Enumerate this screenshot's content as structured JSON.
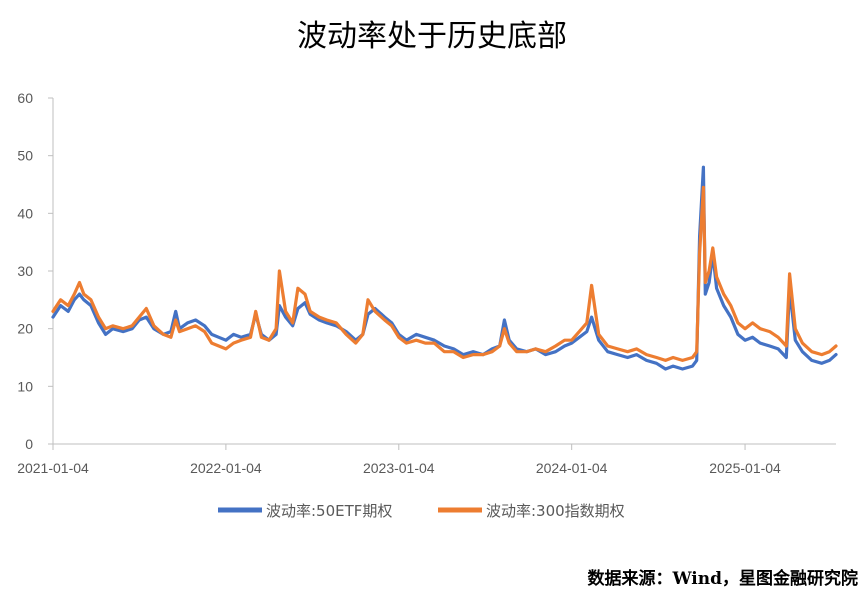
{
  "chart_data": {
    "type": "line",
    "title": "波动率处于历史底部",
    "source": "数据来源：Wind，星图金融研究院",
    "xlabel": "",
    "ylabel": "",
    "ylim": [
      0,
      60
    ],
    "yticks": [
      0,
      10,
      20,
      30,
      40,
      50,
      60
    ],
    "xlim": [
      "2021-01-04",
      "2025-07-15"
    ],
    "xticks": [
      "2021-01-04",
      "2022-01-04",
      "2023-01-04",
      "2024-01-04",
      "2025-01-04"
    ],
    "grid": false,
    "legend_position": "bottom",
    "series": [
      {
        "name": "波动率:50ETF期权",
        "color": "#4472C4",
        "points": [
          [
            "2021-01-04",
            22
          ],
          [
            "2021-01-20",
            24
          ],
          [
            "2021-02-05",
            23
          ],
          [
            "2021-02-18",
            25
          ],
          [
            "2021-03-01",
            26
          ],
          [
            "2021-03-10",
            25
          ],
          [
            "2021-03-25",
            24
          ],
          [
            "2021-04-10",
            21
          ],
          [
            "2021-04-25",
            19
          ],
          [
            "2021-05-10",
            20
          ],
          [
            "2021-06-01",
            19.5
          ],
          [
            "2021-06-20",
            20
          ],
          [
            "2021-07-05",
            21.5
          ],
          [
            "2021-07-20",
            22
          ],
          [
            "2021-08-05",
            20
          ],
          [
            "2021-08-25",
            19
          ],
          [
            "2021-09-10",
            19.5
          ],
          [
            "2021-09-20",
            23
          ],
          [
            "2021-09-28",
            20
          ],
          [
            "2021-10-15",
            21
          ],
          [
            "2021-11-01",
            21.5
          ],
          [
            "2021-11-20",
            20.5
          ],
          [
            "2021-12-05",
            19
          ],
          [
            "2021-12-20",
            18.5
          ],
          [
            "2022-01-04",
            18
          ],
          [
            "2022-01-20",
            19
          ],
          [
            "2022-02-05",
            18.5
          ],
          [
            "2022-02-25",
            19
          ],
          [
            "2022-03-08",
            22.5
          ],
          [
            "2022-03-20",
            19
          ],
          [
            "2022-04-05",
            18
          ],
          [
            "2022-04-20",
            19
          ],
          [
            "2022-04-27",
            24
          ],
          [
            "2022-05-10",
            22
          ],
          [
            "2022-05-25",
            20.5
          ],
          [
            "2022-06-05",
            23.5
          ],
          [
            "2022-06-20",
            24.5
          ],
          [
            "2022-07-01",
            22.5
          ],
          [
            "2022-07-20",
            21.5
          ],
          [
            "2022-08-05",
            21
          ],
          [
            "2022-08-25",
            20.5
          ],
          [
            "2022-09-15",
            19.5
          ],
          [
            "2022-10-05",
            18
          ],
          [
            "2022-10-20",
            19
          ],
          [
            "2022-10-31",
            22.5
          ],
          [
            "2022-11-15",
            23.5
          ],
          [
            "2022-12-05",
            22
          ],
          [
            "2022-12-20",
            21
          ],
          [
            "2023-01-04",
            19
          ],
          [
            "2023-01-20",
            18
          ],
          [
            "2023-02-10",
            19
          ],
          [
            "2023-03-01",
            18.5
          ],
          [
            "2023-03-20",
            18
          ],
          [
            "2023-04-10",
            17
          ],
          [
            "2023-04-30",
            16.5
          ],
          [
            "2023-05-20",
            15.5
          ],
          [
            "2023-06-10",
            16
          ],
          [
            "2023-07-01",
            15.5
          ],
          [
            "2023-07-20",
            16.5
          ],
          [
            "2023-08-05",
            17
          ],
          [
            "2023-08-15",
            21.5
          ],
          [
            "2023-08-25",
            18
          ],
          [
            "2023-09-10",
            16.5
          ],
          [
            "2023-10-01",
            16
          ],
          [
            "2023-10-20",
            16.5
          ],
          [
            "2023-11-10",
            15.5
          ],
          [
            "2023-12-01",
            16
          ],
          [
            "2023-12-20",
            17
          ],
          [
            "2024-01-04",
            17.5
          ],
          [
            "2024-01-20",
            18.5
          ],
          [
            "2024-02-05",
            19.5
          ],
          [
            "2024-02-15",
            22
          ],
          [
            "2024-03-01",
            18
          ],
          [
            "2024-03-20",
            16
          ],
          [
            "2024-04-10",
            15.5
          ],
          [
            "2024-05-01",
            15
          ],
          [
            "2024-05-20",
            15.5
          ],
          [
            "2024-06-10",
            14.5
          ],
          [
            "2024-07-01",
            14
          ],
          [
            "2024-07-20",
            13
          ],
          [
            "2024-08-05",
            13.5
          ],
          [
            "2024-08-25",
            13
          ],
          [
            "2024-09-15",
            13.5
          ],
          [
            "2024-09-24",
            14.5
          ],
          [
            "2024-09-30",
            36
          ],
          [
            "2024-10-08",
            48
          ],
          [
            "2024-10-12",
            26
          ],
          [
            "2024-10-20",
            28
          ],
          [
            "2024-10-28",
            33
          ],
          [
            "2024-11-05",
            27
          ],
          [
            "2024-11-20",
            24
          ],
          [
            "2024-12-05",
            22
          ],
          [
            "2024-12-20",
            19
          ],
          [
            "2025-01-04",
            18
          ],
          [
            "2025-01-20",
            18.5
          ],
          [
            "2025-02-05",
            17.5
          ],
          [
            "2025-02-25",
            17
          ],
          [
            "2025-03-15",
            16.5
          ],
          [
            "2025-04-01",
            15
          ],
          [
            "2025-04-08",
            27
          ],
          [
            "2025-04-20",
            18
          ],
          [
            "2025-05-05",
            16
          ],
          [
            "2025-05-25",
            14.5
          ],
          [
            "2025-06-15",
            14
          ],
          [
            "2025-07-01",
            14.5
          ],
          [
            "2025-07-15",
            15.5
          ]
        ]
      },
      {
        "name": "波动率:300指数期权",
        "color": "#ED7D31",
        "points": [
          [
            "2021-01-04",
            23
          ],
          [
            "2021-01-20",
            25
          ],
          [
            "2021-02-05",
            24
          ],
          [
            "2021-02-18",
            26
          ],
          [
            "2021-03-01",
            28
          ],
          [
            "2021-03-10",
            26
          ],
          [
            "2021-03-25",
            25
          ],
          [
            "2021-04-10",
            22
          ],
          [
            "2021-04-25",
            20
          ],
          [
            "2021-05-10",
            20.5
          ],
          [
            "2021-06-01",
            20
          ],
          [
            "2021-06-20",
            20.5
          ],
          [
            "2021-07-05",
            22
          ],
          [
            "2021-07-20",
            23.5
          ],
          [
            "2021-08-05",
            20.5
          ],
          [
            "2021-08-25",
            19
          ],
          [
            "2021-09-10",
            18.5
          ],
          [
            "2021-09-20",
            21.5
          ],
          [
            "2021-09-28",
            19.5
          ],
          [
            "2021-10-15",
            20
          ],
          [
            "2021-11-01",
            20.5
          ],
          [
            "2021-11-20",
            19.5
          ],
          [
            "2021-12-05",
            17.5
          ],
          [
            "2021-12-20",
            17
          ],
          [
            "2022-01-04",
            16.5
          ],
          [
            "2022-01-20",
            17.5
          ],
          [
            "2022-02-05",
            18
          ],
          [
            "2022-02-25",
            18.5
          ],
          [
            "2022-03-08",
            23
          ],
          [
            "2022-03-20",
            18.5
          ],
          [
            "2022-04-05",
            18
          ],
          [
            "2022-04-20",
            20
          ],
          [
            "2022-04-27",
            30
          ],
          [
            "2022-05-10",
            23
          ],
          [
            "2022-05-25",
            21
          ],
          [
            "2022-06-05",
            27
          ],
          [
            "2022-06-20",
            26
          ],
          [
            "2022-07-01",
            23
          ],
          [
            "2022-07-20",
            22
          ],
          [
            "2022-08-05",
            21.5
          ],
          [
            "2022-08-25",
            21
          ],
          [
            "2022-09-15",
            19
          ],
          [
            "2022-10-05",
            17.5
          ],
          [
            "2022-10-20",
            19
          ],
          [
            "2022-10-31",
            25
          ],
          [
            "2022-11-15",
            23
          ],
          [
            "2022-12-05",
            21.5
          ],
          [
            "2022-12-20",
            20.5
          ],
          [
            "2023-01-04",
            18.5
          ],
          [
            "2023-01-20",
            17.5
          ],
          [
            "2023-02-10",
            18
          ],
          [
            "2023-03-01",
            17.5
          ],
          [
            "2023-03-20",
            17.5
          ],
          [
            "2023-04-10",
            16
          ],
          [
            "2023-04-30",
            16
          ],
          [
            "2023-05-20",
            15
          ],
          [
            "2023-06-10",
            15.5
          ],
          [
            "2023-07-01",
            15.5
          ],
          [
            "2023-07-20",
            16
          ],
          [
            "2023-08-05",
            17
          ],
          [
            "2023-08-15",
            20
          ],
          [
            "2023-08-25",
            17.5
          ],
          [
            "2023-09-10",
            16
          ],
          [
            "2023-10-01",
            16
          ],
          [
            "2023-10-20",
            16.5
          ],
          [
            "2023-11-10",
            16
          ],
          [
            "2023-12-01",
            17
          ],
          [
            "2023-12-20",
            18
          ],
          [
            "2024-01-04",
            18
          ],
          [
            "2024-01-20",
            19.5
          ],
          [
            "2024-02-05",
            21
          ],
          [
            "2024-02-15",
            27.5
          ],
          [
            "2024-03-01",
            19
          ],
          [
            "2024-03-20",
            17
          ],
          [
            "2024-04-10",
            16.5
          ],
          [
            "2024-05-01",
            16
          ],
          [
            "2024-05-20",
            16.5
          ],
          [
            "2024-06-10",
            15.5
          ],
          [
            "2024-07-01",
            15
          ],
          [
            "2024-07-20",
            14.5
          ],
          [
            "2024-08-05",
            15
          ],
          [
            "2024-08-25",
            14.5
          ],
          [
            "2024-09-15",
            15
          ],
          [
            "2024-09-24",
            16
          ],
          [
            "2024-09-30",
            33
          ],
          [
            "2024-10-08",
            44.5
          ],
          [
            "2024-10-12",
            28
          ],
          [
            "2024-10-20",
            30
          ],
          [
            "2024-10-28",
            34
          ],
          [
            "2024-11-05",
            29
          ],
          [
            "2024-11-20",
            26
          ],
          [
            "2024-12-05",
            24
          ],
          [
            "2024-12-20",
            21
          ],
          [
            "2025-01-04",
            20
          ],
          [
            "2025-01-20",
            21
          ],
          [
            "2025-02-05",
            20
          ],
          [
            "2025-02-25",
            19.5
          ],
          [
            "2025-03-15",
            18.5
          ],
          [
            "2025-04-01",
            17
          ],
          [
            "2025-04-08",
            29.5
          ],
          [
            "2025-04-20",
            20
          ],
          [
            "2025-05-05",
            17.5
          ],
          [
            "2025-05-25",
            16
          ],
          [
            "2025-06-15",
            15.5
          ],
          [
            "2025-07-01",
            16
          ],
          [
            "2025-07-15",
            17
          ]
        ]
      }
    ]
  }
}
